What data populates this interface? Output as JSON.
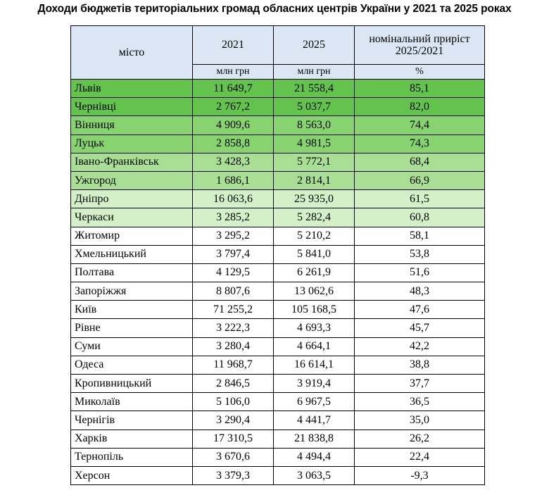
{
  "title": "Доходи бюджетів територіальних громад обласних центрів України у 2021 та 2025 роках",
  "header": {
    "city": "місто",
    "y2021": "2021",
    "y2025": "2025",
    "growth_line1": "номінальний приріст",
    "growth_line2": "2025/2021",
    "unit_2021": "млн грн",
    "unit_2025": "млн грн",
    "unit_growth": "%"
  },
  "colors": {
    "header": "#dae6f3",
    "tier1": "#63c34d",
    "tier2": "#86d36f",
    "tier3": "#a9df95",
    "tier4": "#d4f0c9",
    "default": "#ffffff"
  },
  "rows": [
    {
      "city": "Львів",
      "v2021": "11 649,7",
      "v2025": "21 558,4",
      "growth": "85,1",
      "tier": "tier1"
    },
    {
      "city": "Чернівці",
      "v2021": "2 767,2",
      "v2025": "5 037,7",
      "growth": "82,0",
      "tier": "tier1"
    },
    {
      "city": "Вінниця",
      "v2021": "4 909,6",
      "v2025": "8 563,0",
      "growth": "74,4",
      "tier": "tier2"
    },
    {
      "city": "Луцьк",
      "v2021": "2 858,8",
      "v2025": "4 981,5",
      "growth": "74,3",
      "tier": "tier2"
    },
    {
      "city": "Івано-Франківськ",
      "v2021": "3 428,3",
      "v2025": "5 772,1",
      "growth": "68,4",
      "tier": "tier3"
    },
    {
      "city": "Ужгород",
      "v2021": "1 686,1",
      "v2025": "2 814,1",
      "growth": "66,9",
      "tier": "tier3"
    },
    {
      "city": "Дніпро",
      "v2021": "16 063,6",
      "v2025": "25 935,0",
      "growth": "61,5",
      "tier": "tier4"
    },
    {
      "city": "Черкаси",
      "v2021": "3 285,2",
      "v2025": "5 282,4",
      "growth": "60,8",
      "tier": "tier4"
    },
    {
      "city": "Житомир",
      "v2021": "3 295,2",
      "v2025": "5 210,2",
      "growth": "58,1",
      "tier": "default"
    },
    {
      "city": "Хмельницький",
      "v2021": "3 797,4",
      "v2025": "5 841,0",
      "growth": "53,8",
      "tier": "default"
    },
    {
      "city": "Полтава",
      "v2021": "4 129,5",
      "v2025": "6 261,9",
      "growth": "51,6",
      "tier": "default"
    },
    {
      "city": "Запоріжжя",
      "v2021": "8 807,6",
      "v2025": "13 062,6",
      "growth": "48,3",
      "tier": "default"
    },
    {
      "city": "Київ",
      "v2021": "71 255,2",
      "v2025": "105 168,5",
      "growth": "47,6",
      "tier": "default"
    },
    {
      "city": "Рівне",
      "v2021": "3 222,3",
      "v2025": "4 693,3",
      "growth": "45,7",
      "tier": "default"
    },
    {
      "city": "Суми",
      "v2021": "3 280,4",
      "v2025": "4 664,1",
      "growth": "42,2",
      "tier": "default"
    },
    {
      "city": "Одеса",
      "v2021": "11 968,7",
      "v2025": "16 614,1",
      "growth": "38,8",
      "tier": "default"
    },
    {
      "city": "Кропивницький",
      "v2021": "2 846,5",
      "v2025": "3 919,4",
      "growth": "37,7",
      "tier": "default"
    },
    {
      "city": "Миколаїв",
      "v2021": "5 106,0",
      "v2025": "6 967,5",
      "growth": "36,5",
      "tier": "default"
    },
    {
      "city": "Чернігів",
      "v2021": "3 290,4",
      "v2025": "4 441,7",
      "growth": "35,0",
      "tier": "default"
    },
    {
      "city": "Харків",
      "v2021": "17 310,5",
      "v2025": "21 838,8",
      "growth": "26,2",
      "tier": "default"
    },
    {
      "city": "Тернопіль",
      "v2021": "3 670,6",
      "v2025": "4 494,4",
      "growth": "22,4",
      "tier": "default"
    },
    {
      "city": "Херсон",
      "v2021": "3 379,3",
      "v2025": "3 063,5",
      "growth": "-9,3",
      "tier": "default"
    }
  ]
}
